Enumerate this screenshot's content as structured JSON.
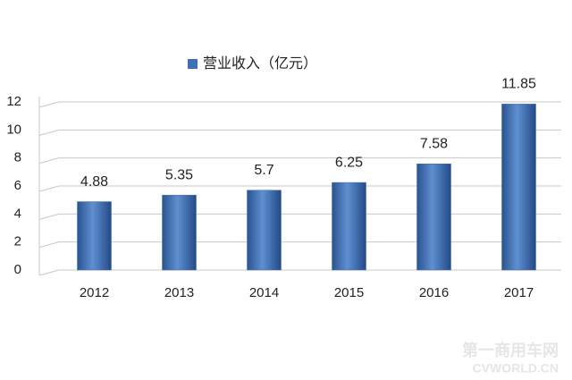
{
  "chart_data": {
    "type": "bar",
    "legend": "营业收入（亿元）",
    "categories": [
      "2012",
      "2013",
      "2014",
      "2015",
      "2016",
      "2017"
    ],
    "values": [
      4.88,
      5.35,
      5.7,
      6.25,
      7.58,
      11.85
    ],
    "color": "#3f6fb5",
    "ylim": [
      0,
      12
    ],
    "yticks": [
      0,
      2,
      4,
      6,
      8,
      10,
      12
    ],
    "grid": true
  },
  "watermark": {
    "name": "第一商用车网",
    "site": "CVWORLD.CN"
  }
}
